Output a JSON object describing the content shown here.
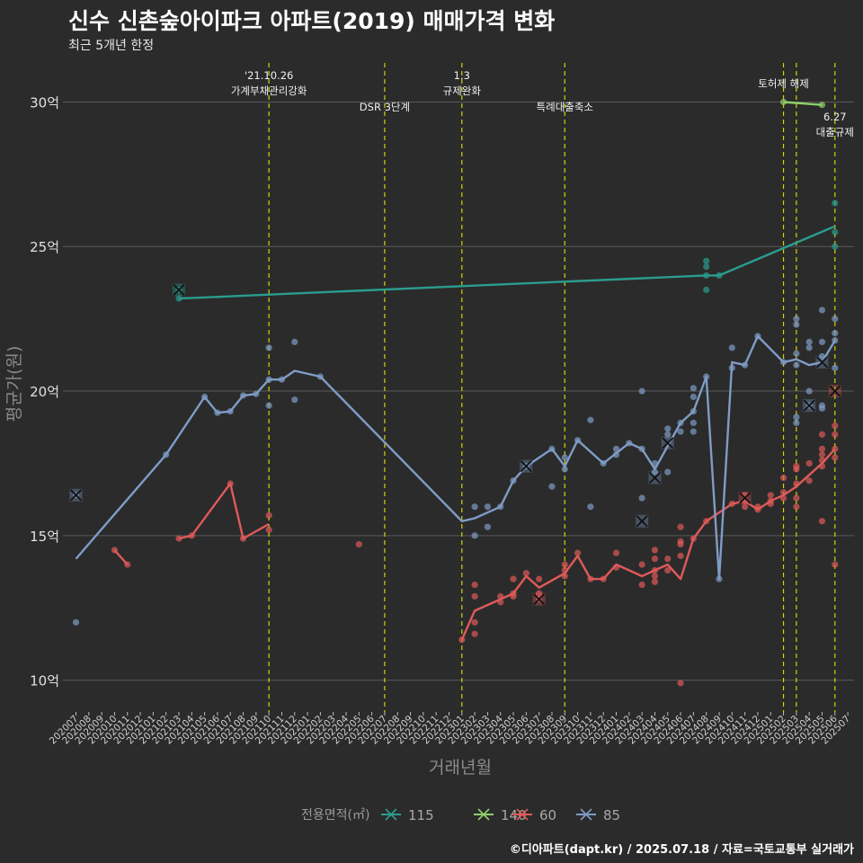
{
  "title": "신수 신촌숲아이파크 아파트(2019) 매매가격 변화",
  "subtitle": "최근 5개년 한정",
  "caption": "©디아파트(dapt.kr) / 2025.07.18 / 자료=국토교통부 실거래가",
  "colors": {
    "background": "#2b2b2b",
    "grid": "#5a5a5a",
    "event_line": "#d4d400",
    "s115": "#2a9d8f",
    "s140": "#8fd16a",
    "s60": "#e05a5a",
    "s85": "#7f9cc6"
  },
  "chart_data": {
    "type": "line",
    "xlabel": "거래년월",
    "ylabel": "평균가(원)",
    "x": [
      "202007",
      "202008",
      "202009",
      "202010",
      "202011",
      "202012",
      "202101",
      "202102",
      "202103",
      "202104",
      "202105",
      "202106",
      "202107",
      "202108",
      "202109",
      "202110",
      "202111",
      "202112",
      "202201",
      "202202",
      "202203",
      "202204",
      "202205",
      "202206",
      "202207",
      "202208",
      "202209",
      "202210",
      "202211",
      "202212",
      "202301",
      "202302",
      "202303",
      "202304",
      "202305",
      "202306",
      "202307",
      "202308",
      "202309",
      "202310",
      "202311",
      "202312",
      "202401",
      "202402",
      "202403",
      "202404",
      "202405",
      "202406",
      "202407",
      "202408",
      "202409",
      "202410",
      "202411",
      "202412",
      "202501",
      "202502",
      "202503",
      "202504",
      "202505",
      "202506",
      "202507"
    ],
    "y_ticks": [
      10,
      15,
      20,
      25,
      30
    ],
    "y_tick_labels": [
      "10억",
      "15억",
      "20억",
      "25억",
      "30억"
    ],
    "ylim": [
      8.9,
      31.6
    ],
    "grid": true,
    "legend": {
      "title": "전용면적(㎡)",
      "position": "bottom",
      "entries": [
        "115",
        "140",
        "60",
        "85"
      ]
    },
    "events": [
      {
        "x": "202110",
        "label": "'21.10.26\n가계부채관리강화",
        "tier": 0
      },
      {
        "x": "202207",
        "label": "DSR 3단계",
        "tier": 1
      },
      {
        "x": "202301",
        "label": "1.3\n규제완화",
        "tier": 0
      },
      {
        "x": "202309",
        "label": "특례대출축소",
        "tier": 1
      },
      {
        "x": "202502",
        "label": "토허제 해제",
        "tier": 0
      },
      {
        "x": "202503",
        "label": "",
        "tier": 0
      },
      {
        "x": "202506",
        "label": "6.27\n대출규제",
        "tier": 2
      }
    ],
    "series": [
      {
        "name": "115",
        "color": "#2a9d8f",
        "line": [
          [
            "202103",
            23.2
          ],
          [
            "202408",
            24.0
          ],
          [
            "202409",
            24.0
          ],
          [
            "202506",
            25.7
          ]
        ],
        "points": [
          [
            "202103",
            23.5
          ],
          [
            "202103",
            23.2
          ],
          [
            "202408",
            24.5
          ],
          [
            "202408",
            24.3
          ],
          [
            "202408",
            24.0
          ],
          [
            "202408",
            23.5
          ],
          [
            "202409",
            24.0
          ],
          [
            "202506",
            26.5
          ],
          [
            "202506",
            25.5
          ],
          [
            "202506",
            25.0
          ]
        ],
        "cancelled": [
          [
            "202103",
            23.5
          ]
        ]
      },
      {
        "name": "140",
        "color": "#8fd16a",
        "line": [
          [
            "202502",
            30.0
          ],
          [
            "202505",
            29.9
          ]
        ],
        "points": [
          [
            "202502",
            30.0
          ],
          [
            "202505",
            29.9
          ]
        ],
        "cancelled": []
      },
      {
        "name": "60",
        "color": "#e05a5a",
        "line": [
          [
            "202010",
            14.5
          ],
          [
            "202011",
            14.0
          ],
          null,
          [
            "202103",
            14.9
          ],
          [
            "202104",
            15.0
          ],
          [
            "202107",
            16.8
          ],
          [
            "202108",
            14.9
          ],
          [
            "202110",
            15.4
          ],
          null,
          [
            "202301",
            11.4
          ],
          [
            "202302",
            12.4
          ],
          [
            "202304",
            12.8
          ],
          [
            "202305",
            13.0
          ],
          [
            "202306",
            13.6
          ],
          [
            "202307",
            13.2
          ],
          [
            "202309",
            13.7
          ],
          [
            "202310",
            14.3
          ],
          [
            "202311",
            13.5
          ],
          [
            "202312",
            13.5
          ],
          [
            "202401",
            14.0
          ],
          [
            "202402",
            13.8
          ],
          [
            "202403",
            13.6
          ],
          [
            "202404",
            13.8
          ],
          [
            "202405",
            14.0
          ],
          [
            "202406",
            13.5
          ],
          [
            "202407",
            14.9
          ],
          [
            "202408",
            15.5
          ],
          [
            "202410",
            16.1
          ],
          [
            "202411",
            16.2
          ],
          [
            "202412",
            15.9
          ],
          [
            "202501",
            16.2
          ],
          [
            "202502",
            16.4
          ],
          [
            "202503",
            16.7
          ],
          [
            "202504",
            17.1
          ],
          [
            "202505",
            17.5
          ],
          [
            "202506",
            18.0
          ]
        ],
        "points": [
          [
            "202010",
            14.5
          ],
          [
            "202011",
            14.0
          ],
          [
            "202103",
            14.9
          ],
          [
            "202104",
            15.0
          ],
          [
            "202107",
            16.8
          ],
          [
            "202108",
            14.9
          ],
          [
            "202110",
            15.7
          ],
          [
            "202110",
            15.2
          ],
          [
            "202205",
            14.7
          ],
          [
            "202301",
            11.4
          ],
          [
            "202302",
            13.3
          ],
          [
            "202302",
            12.9
          ],
          [
            "202302",
            12.0
          ],
          [
            "202302",
            11.6
          ],
          [
            "202304",
            12.9
          ],
          [
            "202304",
            12.7
          ],
          [
            "202305",
            13.5
          ],
          [
            "202305",
            13.0
          ],
          [
            "202305",
            12.9
          ],
          [
            "202306",
            13.7
          ],
          [
            "202307",
            13.5
          ],
          [
            "202307",
            13.0
          ],
          [
            "202307",
            12.8
          ],
          [
            "202309",
            14.0
          ],
          [
            "202309",
            13.8
          ],
          [
            "202309",
            13.6
          ],
          [
            "202310",
            14.4
          ],
          [
            "202311",
            13.5
          ],
          [
            "202312",
            13.5
          ],
          [
            "202401",
            14.4
          ],
          [
            "202401",
            13.9
          ],
          [
            "202403",
            14.0
          ],
          [
            "202403",
            13.3
          ],
          [
            "202404",
            14.5
          ],
          [
            "202404",
            14.2
          ],
          [
            "202404",
            13.8
          ],
          [
            "202404",
            13.6
          ],
          [
            "202404",
            13.4
          ],
          [
            "202405",
            14.2
          ],
          [
            "202405",
            13.8
          ],
          [
            "202406",
            15.3
          ],
          [
            "202406",
            14.8
          ],
          [
            "202406",
            14.3
          ],
          [
            "202406",
            14.7
          ],
          [
            "202406",
            9.9
          ],
          [
            "202407",
            14.9
          ],
          [
            "202408",
            15.5
          ],
          [
            "202410",
            16.1
          ],
          [
            "202411",
            16.4
          ],
          [
            "202411",
            16.2
          ],
          [
            "202411",
            16.0
          ],
          [
            "202412",
            16.0
          ],
          [
            "202412",
            15.9
          ],
          [
            "202501",
            16.4
          ],
          [
            "202501",
            16.2
          ],
          [
            "202501",
            16.1
          ],
          [
            "202502",
            17.0
          ],
          [
            "202502",
            16.5
          ],
          [
            "202502",
            16.3
          ],
          [
            "202503",
            17.4
          ],
          [
            "202503",
            17.3
          ],
          [
            "202503",
            16.8
          ],
          [
            "202503",
            16.3
          ],
          [
            "202503",
            16.0
          ],
          [
            "202504",
            17.5
          ],
          [
            "202504",
            16.9
          ],
          [
            "202505",
            18.5
          ],
          [
            "202505",
            18.0
          ],
          [
            "202505",
            17.8
          ],
          [
            "202505",
            17.6
          ],
          [
            "202505",
            17.4
          ],
          [
            "202505",
            15.5
          ],
          [
            "202506",
            18.8
          ],
          [
            "202506",
            18.5
          ],
          [
            "202506",
            18.0
          ],
          [
            "202506",
            17.7
          ],
          [
            "202506",
            14.0
          ]
        ],
        "cancelled": [
          [
            "202307",
            12.8
          ],
          [
            "202411",
            16.3
          ],
          [
            "202506",
            20.0
          ]
        ]
      },
      {
        "name": "85",
        "color": "#7f9cc6",
        "line": [
          [
            "202007",
            14.2
          ],
          [
            "202102",
            17.8
          ],
          [
            "202105",
            19.8
          ],
          [
            "202106",
            19.25
          ],
          [
            "202107",
            19.3
          ],
          [
            "202108",
            19.85
          ],
          [
            "202109",
            19.9
          ],
          [
            "202110",
            20.4
          ],
          [
            "202111",
            20.4
          ],
          [
            "202112",
            20.7
          ],
          [
            "202202",
            20.5
          ],
          [
            "202301",
            15.5
          ],
          [
            "202302",
            15.6
          ],
          [
            "202304",
            16.0
          ],
          [
            "202305",
            16.9
          ],
          [
            "202306",
            17.4
          ],
          [
            "202308",
            18.0
          ],
          [
            "202309",
            17.4
          ],
          [
            "202310",
            18.3
          ],
          [
            "202312",
            17.5
          ],
          [
            "202402",
            18.2
          ],
          [
            "202403",
            18.0
          ],
          [
            "202404",
            17.3
          ],
          [
            "202405",
            18.1
          ],
          [
            "202406",
            18.9
          ],
          [
            "202407",
            19.3
          ],
          [
            "202408",
            20.5
          ],
          [
            "202409",
            13.5
          ],
          [
            "202410",
            21.0
          ],
          [
            "202411",
            20.9
          ],
          [
            "202412",
            21.9
          ],
          [
            "202502",
            21.0
          ],
          [
            "202503",
            21.1
          ],
          [
            "202504",
            20.9
          ],
          [
            "202505",
            21.0
          ],
          [
            "202506",
            21.75
          ]
        ],
        "points": [
          [
            "202007",
            12.0
          ],
          [
            "202007",
            16.4
          ],
          [
            "202102",
            17.8
          ],
          [
            "202105",
            19.8
          ],
          [
            "202106",
            19.25
          ],
          [
            "202107",
            19.3
          ],
          [
            "202108",
            19.85
          ],
          [
            "202109",
            19.9
          ],
          [
            "202110",
            21.5
          ],
          [
            "202110",
            20.4
          ],
          [
            "202110",
            19.5
          ],
          [
            "202111",
            20.4
          ],
          [
            "202112",
            21.7
          ],
          [
            "202112",
            19.7
          ],
          [
            "202202",
            20.5
          ],
          [
            "202302",
            16.0
          ],
          [
            "202302",
            15.0
          ],
          [
            "202303",
            16.0
          ],
          [
            "202303",
            15.3
          ],
          [
            "202304",
            16.0
          ],
          [
            "202305",
            16.9
          ],
          [
            "202306",
            17.4
          ],
          [
            "202308",
            18.0
          ],
          [
            "202308",
            16.7
          ],
          [
            "202309",
            17.7
          ],
          [
            "202309",
            17.3
          ],
          [
            "202310",
            18.3
          ],
          [
            "202311",
            19.0
          ],
          [
            "202311",
            16.0
          ],
          [
            "202312",
            17.5
          ],
          [
            "202401",
            18.0
          ],
          [
            "202401",
            17.8
          ],
          [
            "202402",
            18.2
          ],
          [
            "202403",
            20.0
          ],
          [
            "202403",
            18.0
          ],
          [
            "202403",
            16.3
          ],
          [
            "202404",
            17.5
          ],
          [
            "202404",
            17.2
          ],
          [
            "202405",
            18.7
          ],
          [
            "202405",
            18.5
          ],
          [
            "202405",
            17.2
          ],
          [
            "202406",
            18.9
          ],
          [
            "202406",
            18.6
          ],
          [
            "202407",
            20.1
          ],
          [
            "202407",
            19.8
          ],
          [
            "202407",
            19.3
          ],
          [
            "202407",
            18.9
          ],
          [
            "202407",
            18.6
          ],
          [
            "202408",
            20.5
          ],
          [
            "202409",
            13.5
          ],
          [
            "202410",
            21.5
          ],
          [
            "202410",
            20.8
          ],
          [
            "202411",
            20.9
          ],
          [
            "202412",
            21.9
          ],
          [
            "202502",
            21.0
          ],
          [
            "202503",
            22.5
          ],
          [
            "202503",
            22.3
          ],
          [
            "202503",
            21.3
          ],
          [
            "202503",
            20.9
          ],
          [
            "202503",
            19.1
          ],
          [
            "202503",
            18.9
          ],
          [
            "202504",
            21.7
          ],
          [
            "202504",
            21.5
          ],
          [
            "202504",
            20.0
          ],
          [
            "202504",
            19.5
          ],
          [
            "202505",
            22.8
          ],
          [
            "202505",
            21.7
          ],
          [
            "202505",
            21.2
          ],
          [
            "202505",
            19.5
          ],
          [
            "202505",
            19.4
          ],
          [
            "202506",
            22.5
          ],
          [
            "202506",
            22.0
          ],
          [
            "202506",
            21.75
          ],
          [
            "202506",
            20.8
          ]
        ],
        "cancelled": [
          [
            "202007",
            16.4
          ],
          [
            "202306",
            17.4
          ],
          [
            "202403",
            15.5
          ],
          [
            "202404",
            17.0
          ],
          [
            "202405",
            18.2
          ],
          [
            "202504",
            19.5
          ],
          [
            "202505",
            21.0
          ]
        ]
      }
    ]
  }
}
